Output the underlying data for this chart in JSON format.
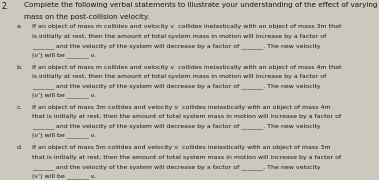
{
  "background_color": "#cdc8be",
  "text_color": "#1a1510",
  "q_num": "2.",
  "title1": "Complete the following verbal statements to illustrate your understanding of the effect of varying",
  "title2": "mass on the post-collision velocity.",
  "parts": [
    {
      "label": "a.",
      "lines": [
        "If an object of mass m collides and velocity v  collides inelastically with an object of mass 3m that",
        "is initially at rest, then the amount of total system mass in motion will increase by a factor of",
        "_______ and the velocity of the system will decrease by a factor of _______. The new velocity",
        "(v’) will be _______ v."
      ]
    },
    {
      "label": "b.",
      "lines": [
        "If an object of mass m collides and velocity v  collides inelastically with an object of mass 4m that",
        "is initially at rest, then the amount of total system mass in motion will increase by a factor of",
        "_______ and the velocity of the system will decrease by a factor of _______. The new velocity",
        "(v’) will be _______ v."
      ]
    },
    {
      "label": "c.",
      "lines": [
        "If an object of mass 3m collides and velocity v  collides inelastically with an object of mass 4m",
        "that is initially at rest, then the amount of total system mass in motion will increase by a factor of",
        "_______ and the velocity of the system will decrease by a factor of _______. The new velocity",
        "(v’) will be _______ v."
      ]
    },
    {
      "label": "d.",
      "lines": [
        "If an object of mass 5m collides and velocity v  collides inelastically with an object of mass 3m",
        "that is initially at rest, then the amount of total system mass in motion will increase by a factor of",
        "_______ and the velocity of the system will decrease by a factor of _______. The new velocity",
        "(v’) will be _______ v."
      ]
    }
  ],
  "fs_title": 5.2,
  "fs_qnum": 5.5,
  "fs_body": 4.5,
  "fs_label": 4.5
}
